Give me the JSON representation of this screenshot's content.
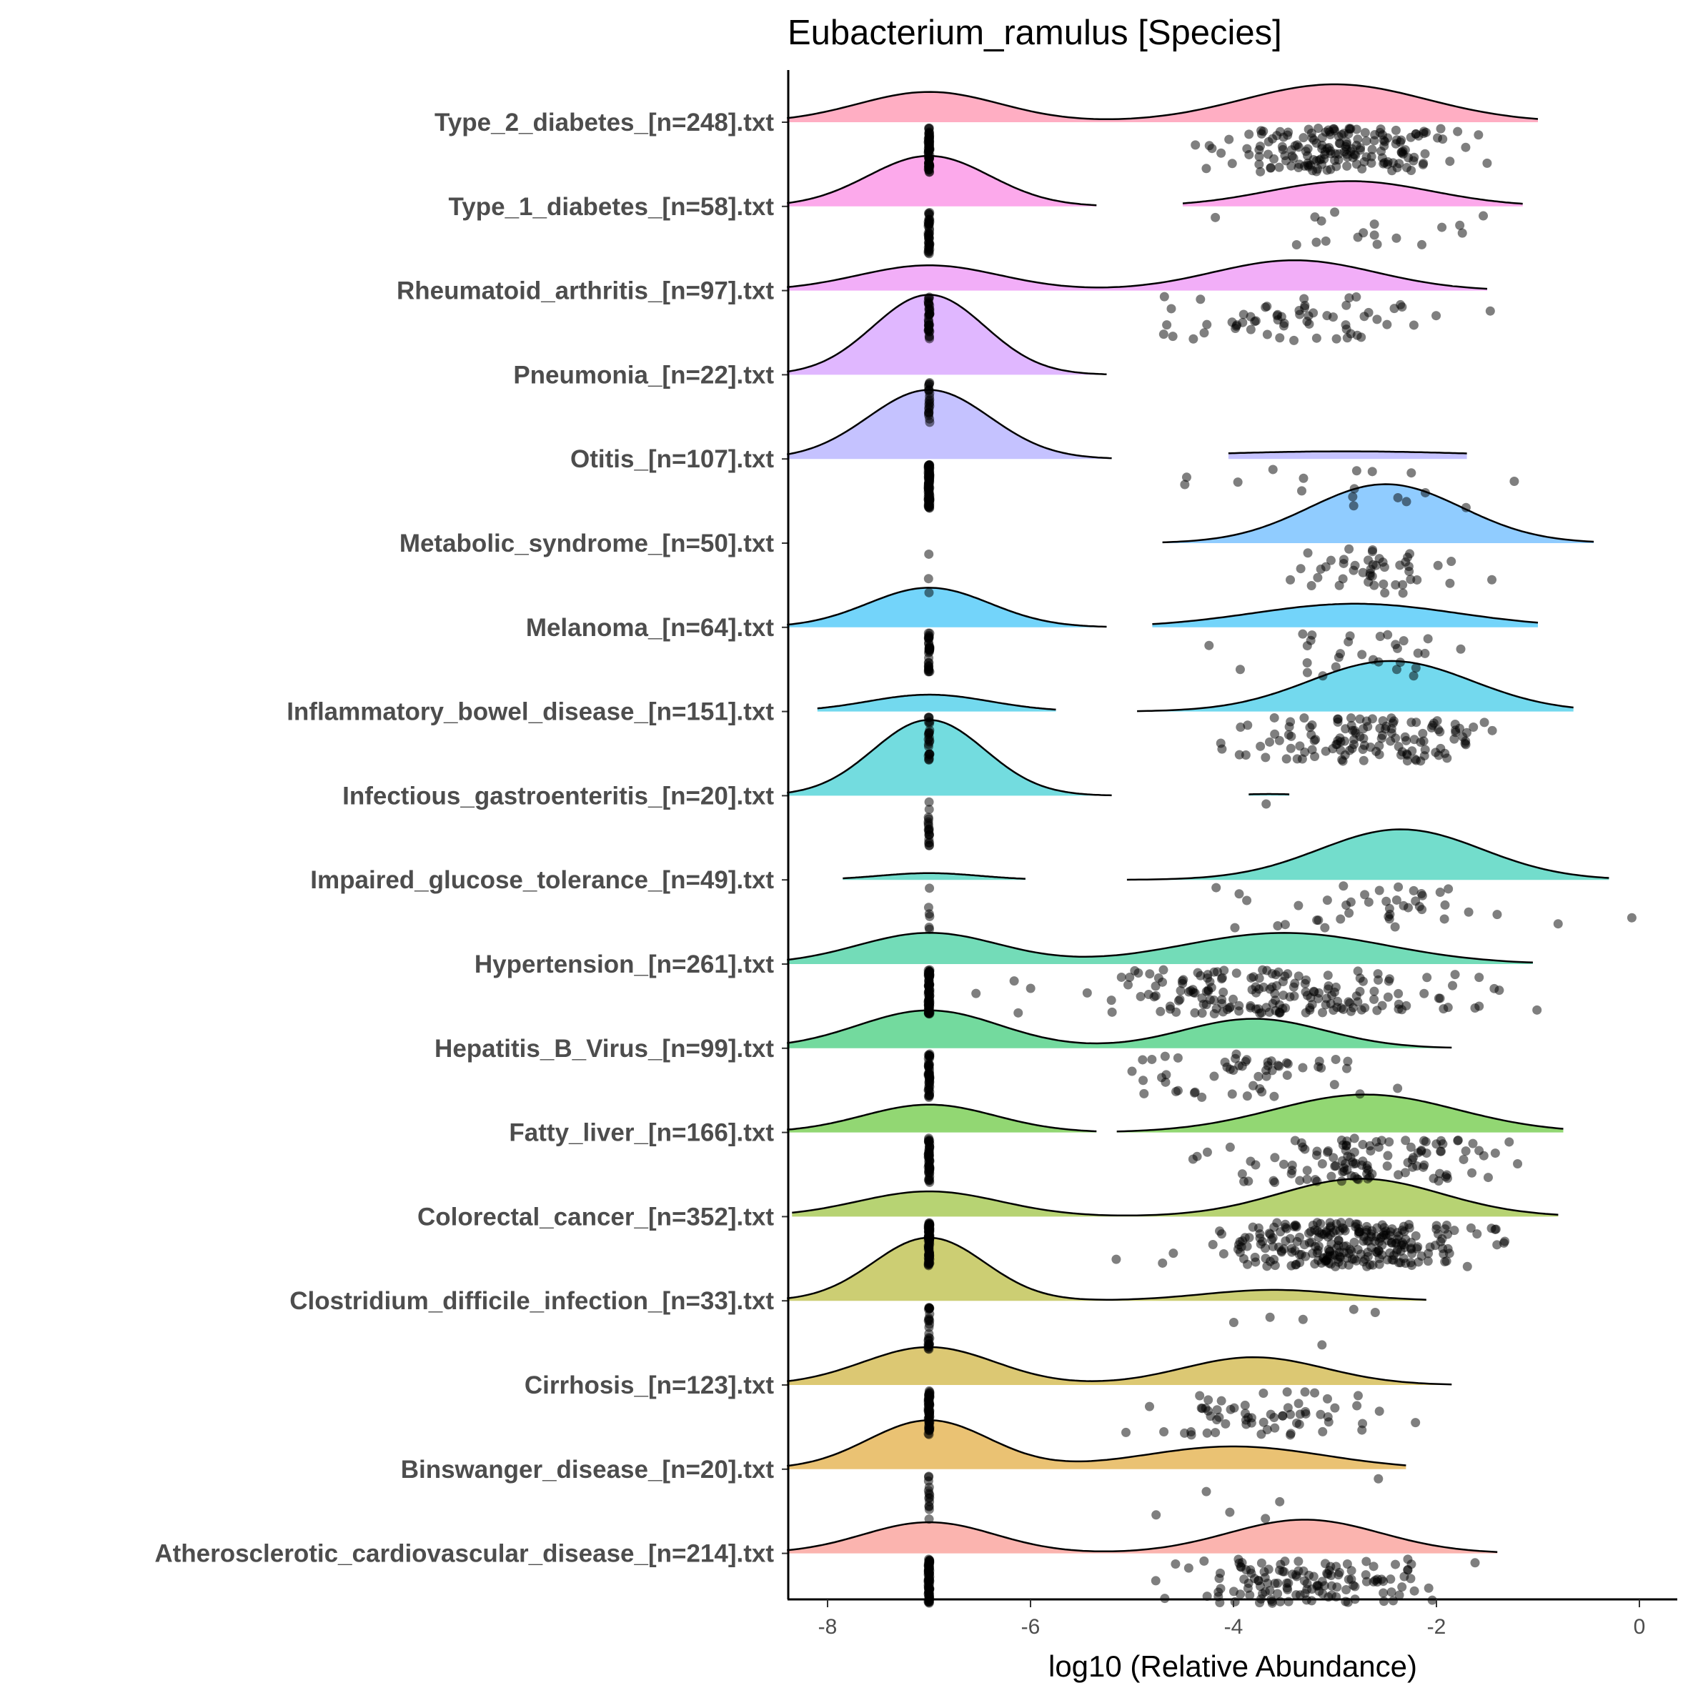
{
  "chart_data": {
    "type": "ridgeline",
    "title": "Eubacterium_ramulus [Species]",
    "xlabel": "log10 (Relative Abundance)",
    "ylabel": "",
    "xlim": [
      -8.4,
      0.37
    ],
    "xticks": [
      -8,
      -6,
      -4,
      -2,
      0
    ],
    "xtick_labels": [
      "-8",
      "-6",
      "-4",
      "-2",
      "0"
    ],
    "zero_value": -7,
    "groups": [
      {
        "label": "Type_2_diabetes_[n=248].txt",
        "color": "#FF6C91",
        "segments": [
          {
            "from": -8.4,
            "to": -1.0,
            "peaks": [
              {
                "mu": -7,
                "sd": 0.7,
                "h": 0.36
              },
              {
                "mu": -3,
                "sd": 0.9,
                "h": 0.45
              }
            ]
          }
        ],
        "n_zero": 70,
        "nonzero": {
          "n": 178,
          "mean": -3.0,
          "sd": 0.6
        }
      },
      {
        "label": "Type_1_diabetes_[n=58].txt",
        "color": "#FA62DB",
        "segments": [
          {
            "from": -8.4,
            "to": -5.35,
            "peaks": [
              {
                "mu": -7,
                "sd": 0.6,
                "h": 0.6
              }
            ]
          },
          {
            "from": -4.5,
            "to": -1.15,
            "peaks": [
              {
                "mu": -2.85,
                "sd": 0.8,
                "h": 0.3
              }
            ]
          }
        ],
        "n_zero": 40,
        "nonzero": {
          "n": 18,
          "mean": -2.9,
          "sd": 0.5
        }
      },
      {
        "label": "Rheumatoid_arthritis_[n=97].txt",
        "color": "#E76BF3",
        "segments": [
          {
            "from": -8.4,
            "to": -1.5,
            "peaks": [
              {
                "mu": -7,
                "sd": 0.7,
                "h": 0.3
              },
              {
                "mu": -3.4,
                "sd": 0.8,
                "h": 0.36
              }
            ]
          }
        ],
        "n_zero": 35,
        "nonzero": {
          "n": 62,
          "mean": -3.4,
          "sd": 0.6
        }
      },
      {
        "label": "Pneumonia_[n=22].txt",
        "color": "#C77CFF",
        "segments": [
          {
            "from": -8.4,
            "to": -5.25,
            "peaks": [
              {
                "mu": -7,
                "sd": 0.55,
                "h": 0.95
              }
            ]
          }
        ],
        "n_zero": 22,
        "nonzero": {
          "n": 0,
          "mean": -3,
          "sd": 0.5
        }
      },
      {
        "label": "Otitis_[n=107].txt",
        "color": "#9590FF",
        "segments": [
          {
            "from": -8.4,
            "to": -5.2,
            "peaks": [
              {
                "mu": -7,
                "sd": 0.6,
                "h": 0.82
              }
            ]
          },
          {
            "from": -4.05,
            "to": -1.7,
            "peaks": [
              {
                "mu": -2.9,
                "sd": 1.5,
                "h": 0.09
              }
            ]
          }
        ],
        "n_zero": 90,
        "nonzero": {
          "n": 17,
          "mean": -3.0,
          "sd": 0.8
        }
      },
      {
        "label": "Metabolic_syndrome_[n=50].txt",
        "color": "#35A2FF",
        "segments": [
          {
            "from": -4.7,
            "to": -0.45,
            "peaks": [
              {
                "mu": -2.5,
                "sd": 0.75,
                "h": 0.7
              }
            ]
          }
        ],
        "n_zero": 3,
        "nonzero": {
          "n": 47,
          "mean": -2.6,
          "sd": 0.6
        }
      },
      {
        "label": "Melanoma_[n=64].txt",
        "color": "#00B0F6",
        "segments": [
          {
            "from": -8.4,
            "to": -5.25,
            "peaks": [
              {
                "mu": -7,
                "sd": 0.6,
                "h": 0.47
              }
            ]
          },
          {
            "from": -4.8,
            "to": -1.0,
            "peaks": [
              {
                "mu": -2.8,
                "sd": 1.0,
                "h": 0.28
              }
            ]
          }
        ],
        "n_zero": 34,
        "nonzero": {
          "n": 30,
          "mean": -2.9,
          "sd": 0.7
        }
      },
      {
        "label": "Inflammatory_bowel_disease_[n=151].txt",
        "color": "#00BAE0",
        "segments": [
          {
            "from": -8.1,
            "to": -5.75,
            "peaks": [
              {
                "mu": -7,
                "sd": 0.6,
                "h": 0.2
              }
            ]
          },
          {
            "from": -4.95,
            "to": -0.65,
            "peaks": [
              {
                "mu": -2.45,
                "sd": 0.8,
                "h": 0.6
              }
            ]
          }
        ],
        "n_zero": 25,
        "nonzero": {
          "n": 126,
          "mean": -2.6,
          "sd": 0.6
        }
      },
      {
        "label": "Infectious_gastroenteritis_[n=20].txt",
        "color": "#00BFC4",
        "segments": [
          {
            "from": -8.4,
            "to": -5.2,
            "peaks": [
              {
                "mu": -7,
                "sd": 0.55,
                "h": 0.9
              }
            ]
          },
          {
            "from": -3.85,
            "to": -3.45,
            "peaks": [
              {
                "mu": -3.65,
                "sd": 0.3,
                "h": 0.02
              }
            ]
          }
        ],
        "n_zero": 19,
        "nonzero": {
          "n": 1,
          "mean": -3.65,
          "sd": 0.05
        }
      },
      {
        "label": "Impaired_glucose_tolerance_[n=49].txt",
        "color": "#00C1A3",
        "segments": [
          {
            "from": -7.85,
            "to": -6.05,
            "peaks": [
              {
                "mu": -7,
                "sd": 0.5,
                "h": 0.08
              }
            ]
          },
          {
            "from": -5.05,
            "to": -0.3,
            "peaks": [
              {
                "mu": -2.35,
                "sd": 0.8,
                "h": 0.6
              }
            ]
          }
        ],
        "n_zero": 6,
        "nonzero": {
          "n": 43,
          "mean": -2.6,
          "sd": 0.8
        }
      },
      {
        "label": "Hypertension_[n=261].txt",
        "color": "#00BF7D",
        "segments": [
          {
            "from": -8.4,
            "to": -1.05,
            "peaks": [
              {
                "mu": -7,
                "sd": 0.7,
                "h": 0.37
              },
              {
                "mu": -3.5,
                "sd": 1.0,
                "h": 0.37
              }
            ]
          }
        ],
        "n_zero": 80,
        "nonzero": {
          "n": 181,
          "mean": -3.5,
          "sd": 0.9
        }
      },
      {
        "label": "Hepatitis_B_Virus_[n=99].txt",
        "color": "#00BB4E",
        "segments": [
          {
            "from": -8.4,
            "to": -1.85,
            "peaks": [
              {
                "mu": -7,
                "sd": 0.7,
                "h": 0.45
              },
              {
                "mu": -3.8,
                "sd": 0.7,
                "h": 0.35
              }
            ]
          }
        ],
        "n_zero": 45,
        "nonzero": {
          "n": 54,
          "mean": -3.8,
          "sd": 0.6
        }
      },
      {
        "label": "Fatty_liver_[n=166].txt",
        "color": "#39B600",
        "segments": [
          {
            "from": -8.4,
            "to": -5.35,
            "peaks": [
              {
                "mu": -7,
                "sd": 0.65,
                "h": 0.33
              }
            ]
          },
          {
            "from": -5.15,
            "to": -0.75,
            "peaks": [
              {
                "mu": -2.7,
                "sd": 0.9,
                "h": 0.45
              }
            ]
          }
        ],
        "n_zero": 50,
        "nonzero": {
          "n": 116,
          "mean": -2.7,
          "sd": 0.7
        }
      },
      {
        "label": "Colorectal_cancer_[n=352].txt",
        "color": "#7CAE00",
        "segments": [
          {
            "from": -8.35,
            "to": -0.8,
            "peaks": [
              {
                "mu": -7,
                "sd": 0.7,
                "h": 0.3
              },
              {
                "mu": -2.75,
                "sd": 0.8,
                "h": 0.45
              }
            ]
          }
        ],
        "n_zero": 90,
        "nonzero": {
          "n": 262,
          "mean": -2.9,
          "sd": 0.6
        }
      },
      {
        "label": "Clostridium_difficile_infection_[n=33].txt",
        "color": "#A3A500",
        "segments": [
          {
            "from": -8.4,
            "to": -2.1,
            "peaks": [
              {
                "mu": -7,
                "sd": 0.55,
                "h": 0.75
              },
              {
                "mu": -3.6,
                "sd": 0.7,
                "h": 0.13
              }
            ]
          }
        ],
        "n_zero": 27,
        "nonzero": {
          "n": 6,
          "mean": -3.5,
          "sd": 0.6
        }
      },
      {
        "label": "Cirrhosis_[n=123].txt",
        "color": "#C09B00",
        "segments": [
          {
            "from": -8.4,
            "to": -1.85,
            "peaks": [
              {
                "mu": -7,
                "sd": 0.65,
                "h": 0.45
              },
              {
                "mu": -3.8,
                "sd": 0.7,
                "h": 0.33
              }
            ]
          }
        ],
        "n_zero": 60,
        "nonzero": {
          "n": 63,
          "mean": -3.7,
          "sd": 0.55
        }
      },
      {
        "label": "Binswanger_disease_[n=20].txt",
        "color": "#D89000",
        "segments": [
          {
            "from": -8.4,
            "to": -2.3,
            "peaks": [
              {
                "mu": -7,
                "sd": 0.6,
                "h": 0.58
              },
              {
                "mu": -4.0,
                "sd": 0.9,
                "h": 0.27
              }
            ]
          }
        ],
        "n_zero": 14,
        "nonzero": {
          "n": 6,
          "mean": -4.2,
          "sd": 0.6
        }
      },
      {
        "label": "Atherosclerotic_cardiovascular_disease_[n=214].txt",
        "color": "#F8766D",
        "segments": [
          {
            "from": -8.4,
            "to": -1.4,
            "peaks": [
              {
                "mu": -7,
                "sd": 0.65,
                "h": 0.37
              },
              {
                "mu": -3.3,
                "sd": 0.75,
                "h": 0.4
              }
            ]
          }
        ],
        "n_zero": 80,
        "nonzero": {
          "n": 134,
          "mean": -3.4,
          "sd": 0.6
        }
      }
    ]
  }
}
